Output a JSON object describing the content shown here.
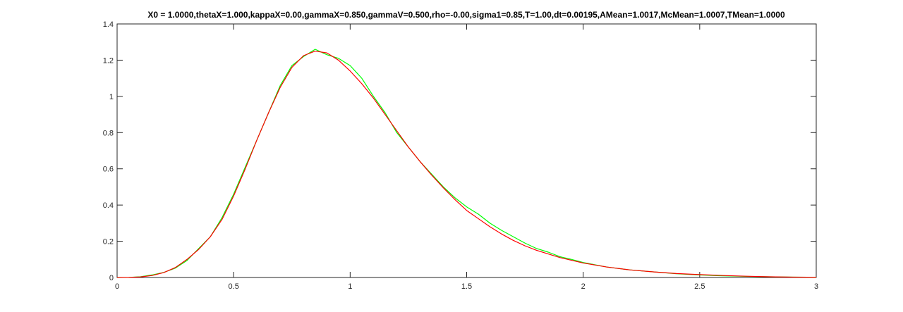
{
  "chart_data": {
    "type": "line",
    "title": "X0 = 1.0000,thetaX=1.000,kappaX=0.00,gammaX=0.850,gammaV=0.500,rho=-0.00,sigma1=0.85,T=1.00,dt=0.00195,AMean=1.0017,McMean=1.0007,TMean=1.0000",
    "xlabel": "",
    "ylabel": "",
    "xlim": [
      0,
      3
    ],
    "ylim": [
      0,
      1.4
    ],
    "xticks": [
      0,
      0.5,
      1,
      1.5,
      2,
      2.5,
      3
    ],
    "xtick_labels": [
      "0",
      "0.5",
      "1",
      "1.5",
      "2",
      "2.5",
      "3"
    ],
    "yticks": [
      0,
      0.2,
      0.4,
      0.6,
      0.8,
      1,
      1.2,
      1.4
    ],
    "ytick_labels": [
      "0",
      "0.2",
      "0.4",
      "0.6",
      "0.8",
      "1",
      "1.2",
      "1.4"
    ],
    "grid": false,
    "legend": "none",
    "series": [
      {
        "color": "#00ff00",
        "x": [
          0,
          0.05,
          0.1,
          0.15,
          0.2,
          0.25,
          0.3,
          0.35,
          0.4,
          0.45,
          0.5,
          0.55,
          0.6,
          0.65,
          0.7,
          0.75,
          0.8,
          0.85,
          0.9,
          0.95,
          1.0,
          1.05,
          1.1,
          1.15,
          1.2,
          1.25,
          1.3,
          1.35,
          1.4,
          1.45,
          1.5,
          1.55,
          1.6,
          1.65,
          1.7,
          1.75,
          1.8,
          1.85,
          1.9,
          1.95,
          2.0,
          2.1,
          2.2,
          2.3,
          2.4,
          2.5,
          2.6,
          2.7,
          2.8,
          2.9,
          3.0
        ],
        "values": [
          0,
          0.0008,
          0.004,
          0.014,
          0.028,
          0.052,
          0.094,
          0.16,
          0.225,
          0.33,
          0.46,
          0.61,
          0.76,
          0.91,
          1.06,
          1.17,
          1.22,
          1.26,
          1.23,
          1.21,
          1.17,
          1.1,
          1.0,
          0.91,
          0.8,
          0.72,
          0.64,
          0.57,
          0.5,
          0.44,
          0.39,
          0.35,
          0.3,
          0.26,
          0.225,
          0.19,
          0.16,
          0.14,
          0.115,
          0.1,
          0.083,
          0.058,
          0.042,
          0.031,
          0.021,
          0.014,
          0.009,
          0.006,
          0.004,
          0.002,
          0.001
        ]
      },
      {
        "color": "#ff0000",
        "x": [
          0,
          0.05,
          0.1,
          0.15,
          0.2,
          0.25,
          0.3,
          0.35,
          0.4,
          0.45,
          0.5,
          0.55,
          0.6,
          0.65,
          0.7,
          0.75,
          0.8,
          0.85,
          0.9,
          0.95,
          1.0,
          1.05,
          1.1,
          1.15,
          1.2,
          1.25,
          1.3,
          1.35,
          1.4,
          1.45,
          1.5,
          1.55,
          1.6,
          1.65,
          1.7,
          1.75,
          1.8,
          1.85,
          1.9,
          1.95,
          2.0,
          2.1,
          2.2,
          2.3,
          2.4,
          2.5,
          2.6,
          2.7,
          2.8,
          2.9,
          3.0
        ],
        "values": [
          0,
          0.0005,
          0.003,
          0.011,
          0.027,
          0.055,
          0.1,
          0.155,
          0.225,
          0.32,
          0.45,
          0.6,
          0.76,
          0.91,
          1.05,
          1.16,
          1.225,
          1.25,
          1.24,
          1.2,
          1.14,
          1.07,
          0.99,
          0.9,
          0.81,
          0.72,
          0.64,
          0.565,
          0.495,
          0.43,
          0.37,
          0.325,
          0.28,
          0.24,
          0.205,
          0.175,
          0.15,
          0.13,
          0.11,
          0.095,
          0.08,
          0.058,
          0.042,
          0.031,
          0.022,
          0.016,
          0.011,
          0.007,
          0.004,
          0.002,
          0.001
        ]
      }
    ]
  }
}
